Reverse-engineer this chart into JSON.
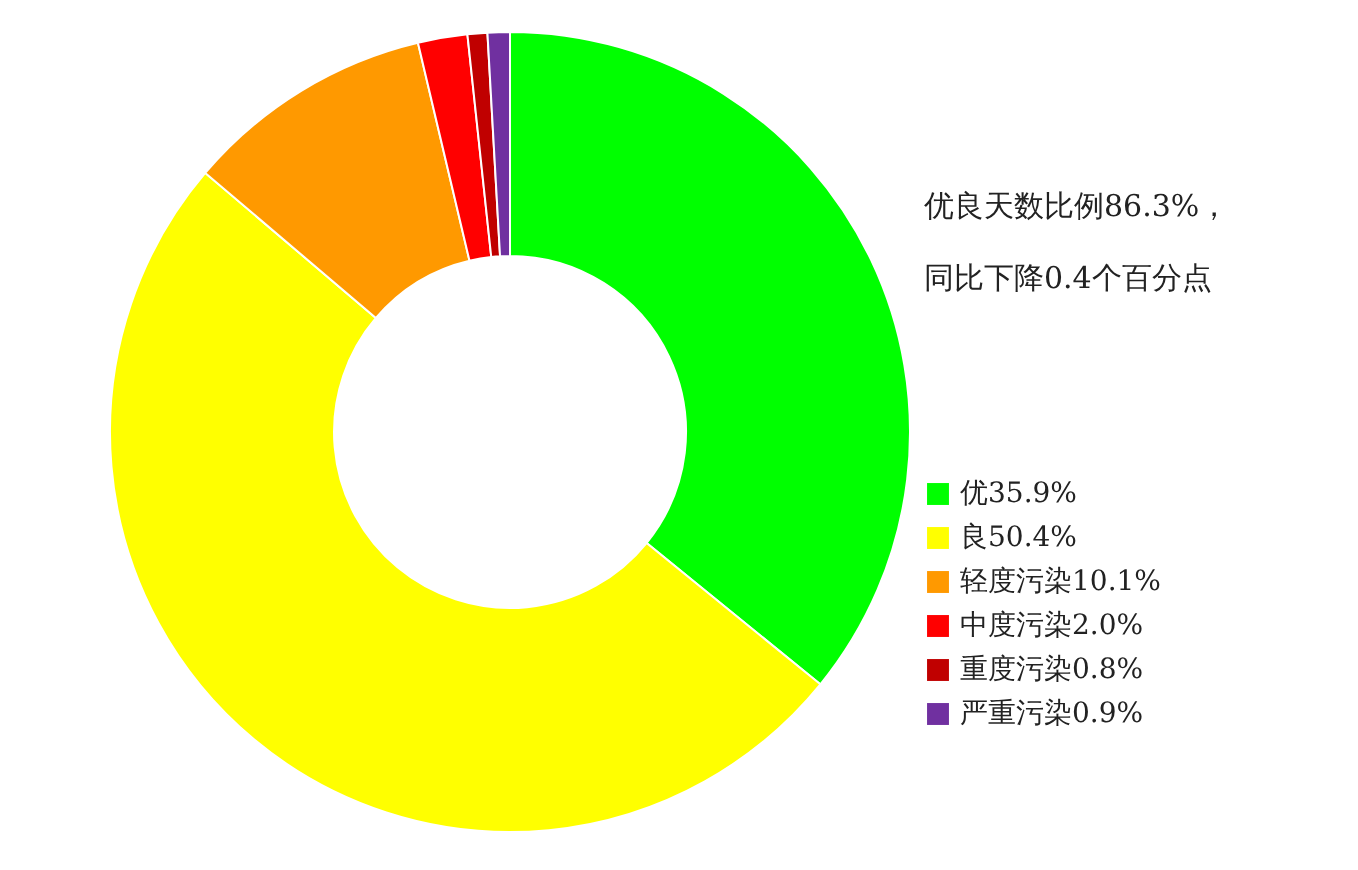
{
  "chart_data": {
    "type": "donut",
    "categories": [
      "优35.9%",
      "良50.4%",
      "轻度污染10.1%",
      "中度污染2.0%",
      "重度污染0.8%",
      "严重污染0.9%"
    ],
    "values": [
      35.9,
      50.4,
      10.1,
      2.0,
      0.8,
      0.9
    ],
    "colors": [
      "#00ff00",
      "#ffff00",
      "#ff9900",
      "#ff0000",
      "#c00000",
      "#7030a0"
    ],
    "annotations": [
      "优良天数比例86.3%，",
      "同比下降0.4个百分点"
    ],
    "legend": "right"
  }
}
